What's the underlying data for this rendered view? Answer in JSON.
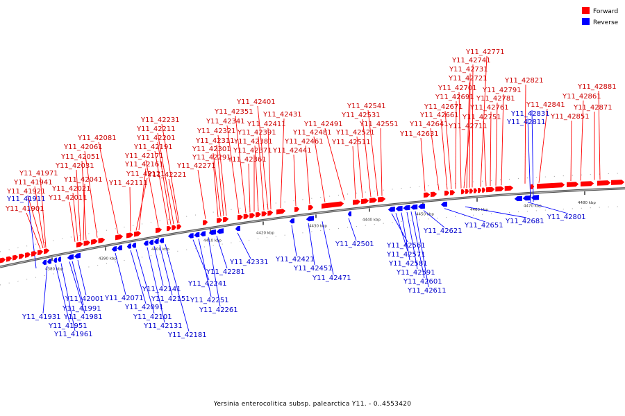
{
  "caption": "Yersinia enterocolitica subsp. palearctica Y11. - 0..4553420",
  "colors": {
    "forward": "#ff0000",
    "reverse": "#0000ff",
    "backbone": "#777777",
    "text_fwd": "#cc0000",
    "text_rev": "#0000cc"
  },
  "legend": [
    {
      "label": "Forward",
      "color": "#ff0000"
    },
    {
      "label": "Reverse",
      "color": "#0000ff"
    }
  ],
  "axis_ticks": [
    "4380 kbp",
    "4390 kbp",
    "4400 kbp",
    "4410 kbp",
    "4420 kbp",
    "4430 kbp",
    "4440 kbp",
    "4450 kbp",
    "4460 kbp",
    "4470 kbp",
    "4480 kbp"
  ],
  "forward_genes": [
    "Y11_41901",
    "Y11_41921",
    "Y11_41941",
    "Y11_41971",
    "Y11_42011",
    "Y11_42021",
    "Y11_42041",
    "Y11_42051",
    "Y11_42031",
    "Y11_42061",
    "Y11_42081",
    "Y11_42111",
    "Y11_42121",
    "Y11_42161",
    "Y11_42171",
    "Y11_42191",
    "Y11_42201",
    "Y11_42211",
    "Y11_42231",
    "Y11_42221",
    "Y11_42271",
    "Y11_42291",
    "Y11_42301",
    "Y11_42311",
    "Y11_42321",
    "Y11_42341",
    "Y11_42351",
    "Y11_42361",
    "Y11_42371",
    "Y11_42381",
    "Y11_42391",
    "Y11_42401",
    "Y11_42411",
    "Y11_42431",
    "Y11_42441",
    "Y11_42461",
    "Y11_42481",
    "Y11_42491",
    "Y11_42511",
    "Y11_42521",
    "Y11_42531",
    "Y11_42541",
    "Y11_42551",
    "Y11_42631",
    "Y11_42641",
    "Y11_42661",
    "Y11_42671",
    "Y11_42691",
    "Y11_42701",
    "Y11_42711",
    "Y11_42721",
    "Y11_42731",
    "Y11_42741",
    "Y11_42771",
    "Y11_42751",
    "Y11_42761",
    "Y11_42781",
    "Y11_42791",
    "Y11_42821",
    "Y11_42841",
    "Y11_42851",
    "Y11_42861",
    "Y11_42871",
    "Y11_42881"
  ],
  "reverse_genes": [
    "Y11_41911",
    "Y11_41931",
    "Y11_41951",
    "Y11_41961",
    "Y11_41981",
    "Y11_41991",
    "Y11_42001",
    "Y11_42071",
    "Y11_42091",
    "Y11_42101",
    "Y11_42131",
    "Y11_42141",
    "Y11_42151",
    "Y11_42181",
    "Y11_42241",
    "Y11_42251",
    "Y11_42261",
    "Y11_42281",
    "Y11_42331",
    "Y11_42421",
    "Y11_42451",
    "Y11_42471",
    "Y11_42501",
    "Y11_42561",
    "Y11_42571",
    "Y11_42581",
    "Y11_42591",
    "Y11_42601",
    "Y11_42611",
    "Y11_42621",
    "Y11_42651",
    "Y11_42681",
    "Y11_42801",
    "Y11_42811",
    "Y11_42831"
  ]
}
